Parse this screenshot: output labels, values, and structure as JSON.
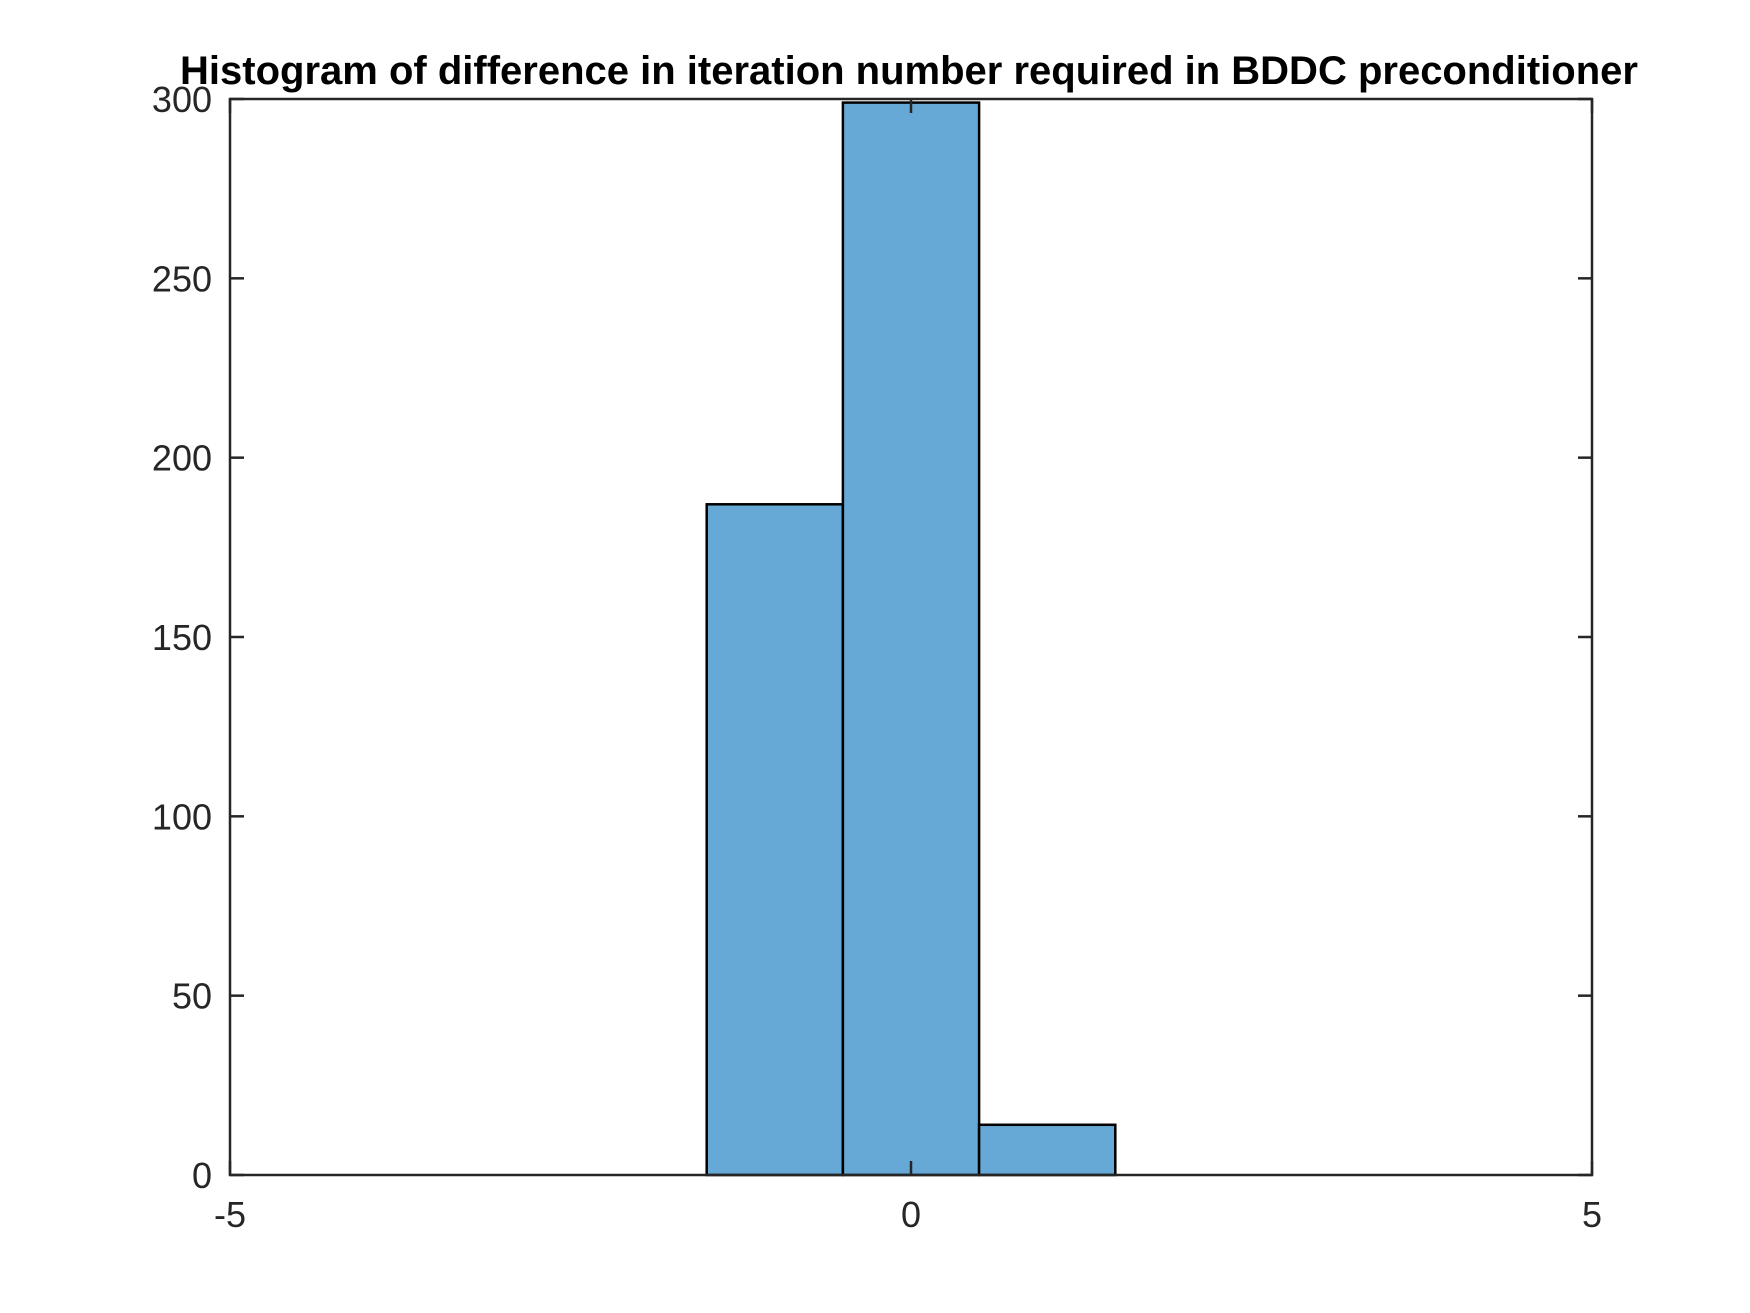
{
  "chart_data": {
    "type": "bar",
    "title": "Histogram of difference in iteration number required in BDDC preconditioner",
    "xlabel": "",
    "ylabel": "",
    "xlim": [
      -5,
      5
    ],
    "ylim": [
      0,
      300
    ],
    "x_ticks": [
      -5,
      0,
      5
    ],
    "y_ticks": [
      0,
      50,
      100,
      150,
      200,
      250,
      300
    ],
    "bins": [
      {
        "left": -1.5,
        "right": -0.5,
        "value": 187
      },
      {
        "left": -0.5,
        "right": 0.5,
        "value": 299
      },
      {
        "left": 0.5,
        "right": 1.5,
        "value": 14
      }
    ],
    "bar_color": "#66a9d6",
    "edge_color": "#000000",
    "grid": false,
    "box": true
  }
}
